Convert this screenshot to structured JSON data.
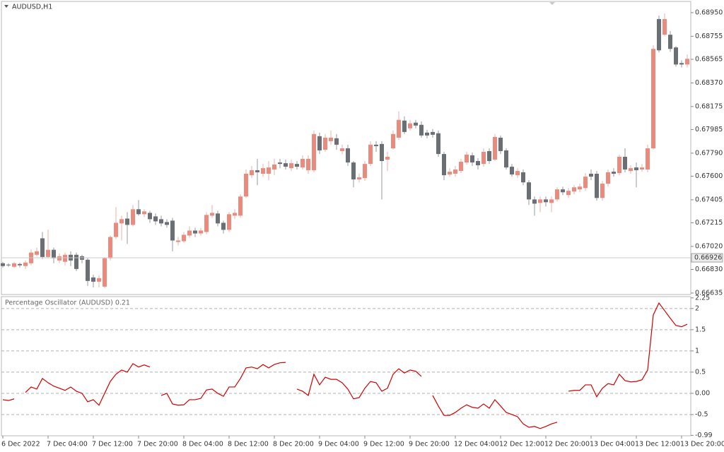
{
  "chart_data": [
    {
      "type": "candlestick",
      "title": "AUDUSD,H1",
      "categories": [
        "6 Dec 2022",
        null,
        null,
        null,
        null,
        null,
        null,
        null,
        "7 Dec 04:00",
        null,
        null,
        null,
        null,
        null,
        null,
        null,
        "7 Dec 12:00",
        null,
        null,
        null,
        null,
        null,
        null,
        null,
        "7 Dec 20:00",
        null,
        null,
        null,
        null,
        null,
        null,
        null,
        "8 Dec 04:00",
        null,
        null,
        null,
        null,
        null,
        null,
        null,
        "8 Dec 12:00",
        null,
        null,
        null,
        null,
        null,
        null,
        null,
        "8 Dec 20:00",
        null,
        null,
        null,
        null,
        null,
        null,
        null,
        "9 Dec 04:00",
        null,
        null,
        null,
        null,
        null,
        null,
        null,
        "9 Dec 12:00",
        null,
        null,
        null,
        null,
        null,
        null,
        null,
        "9 Dec 20:00",
        null,
        null,
        null,
        null,
        null,
        null,
        null,
        "12 Dec 04:00",
        null,
        null,
        null,
        null,
        null,
        null,
        null,
        "12 Dec 12:00",
        null,
        null,
        null,
        null,
        null,
        null,
        null,
        "12 Dec 20:00",
        null,
        null,
        null,
        null,
        null,
        null,
        null,
        "13 Dec 04:00",
        null,
        null,
        null,
        null,
        null,
        null,
        null,
        "13 Dec 12:00",
        null,
        null,
        null,
        null,
        null,
        null,
        null,
        "13 Dec 20:00",
        null
      ],
      "ohlc": [
        [
          0.66881,
          0.66893,
          0.66846,
          0.66858
        ],
        [
          0.6687,
          0.66881,
          0.66852,
          0.66864
        ],
        [
          0.66852,
          0.66893,
          0.6684,
          0.66881
        ],
        [
          0.66875,
          0.66887,
          0.66846,
          0.66864
        ],
        [
          0.66858,
          0.66905,
          0.66834,
          0.66887
        ],
        [
          0.66881,
          0.66993,
          0.66864,
          0.66969
        ],
        [
          0.66951,
          0.6701,
          0.66939,
          0.6698
        ],
        [
          0.67087,
          0.67139,
          0.66916,
          0.66933
        ],
        [
          0.66933,
          0.67157,
          0.66922,
          0.66992
        ],
        [
          0.66992,
          0.6701,
          0.66881,
          0.66922
        ],
        [
          0.66904,
          0.66963,
          0.66881,
          0.66939
        ],
        [
          0.66893,
          0.66969,
          0.66864,
          0.66951
        ],
        [
          0.66951,
          0.6698,
          0.66858,
          0.66904
        ],
        [
          0.66951,
          0.66969,
          0.66816,
          0.66834
        ],
        [
          0.66939,
          0.66951,
          0.66881,
          0.6691
        ],
        [
          0.6691,
          0.66922,
          0.66694,
          0.66735
        ],
        [
          0.66764,
          0.66787,
          0.66682,
          0.66729
        ],
        [
          0.66729,
          0.66781,
          0.66682,
          0.66758
        ],
        [
          0.66688,
          0.66933,
          0.66676,
          0.66922
        ],
        [
          0.66922,
          0.6711,
          0.66905,
          0.67098
        ],
        [
          0.67098,
          0.67344,
          0.67081,
          0.67215
        ],
        [
          0.6721,
          0.67274,
          0.67069,
          0.67245
        ],
        [
          0.6725,
          0.67303,
          0.6704,
          0.67198
        ],
        [
          0.67198,
          0.67362,
          0.67186,
          0.67327
        ],
        [
          0.67327,
          0.67403,
          0.67274,
          0.67286
        ],
        [
          0.67286,
          0.67327,
          0.67262,
          0.67309
        ],
        [
          0.67297,
          0.67315,
          0.67215,
          0.67245
        ],
        [
          0.67268,
          0.67292,
          0.67198,
          0.67227
        ],
        [
          0.67245,
          0.67274,
          0.67186,
          0.6721
        ],
        [
          0.67221,
          0.67245,
          0.67174,
          0.67198
        ],
        [
          0.67233,
          0.67256,
          0.6698,
          0.67069
        ],
        [
          0.67057,
          0.67098,
          0.67028,
          0.67069
        ],
        [
          0.67063,
          0.67139,
          0.67051,
          0.67116
        ],
        [
          0.6711,
          0.67186,
          0.67092,
          0.67151
        ],
        [
          0.67151,
          0.67174,
          0.67098,
          0.67127
        ],
        [
          0.67127,
          0.67174,
          0.6711,
          0.67151
        ],
        [
          0.67139,
          0.67303,
          0.67121,
          0.6728
        ],
        [
          0.67274,
          0.67362,
          0.67256,
          0.67297
        ],
        [
          0.67292,
          0.67315,
          0.67186,
          0.6721
        ],
        [
          0.67215,
          0.67233,
          0.67127,
          0.67157
        ],
        [
          0.67157,
          0.67303,
          0.67139,
          0.67286
        ],
        [
          0.67274,
          0.67327,
          0.67245,
          0.67297
        ],
        [
          0.67274,
          0.6745,
          0.67256,
          0.67432
        ],
        [
          0.67432,
          0.67655,
          0.6742,
          0.6762
        ],
        [
          0.67608,
          0.67684,
          0.67584,
          0.67649
        ],
        [
          0.67649,
          0.67743,
          0.67526,
          0.67632
        ],
        [
          0.6762,
          0.67701,
          0.67596,
          0.67666
        ],
        [
          0.6762,
          0.67725,
          0.67567,
          0.67672
        ],
        [
          0.67655,
          0.67743,
          0.67608,
          0.67696
        ],
        [
          0.67713,
          0.67743,
          0.67666,
          0.67701
        ],
        [
          0.67707,
          0.67737,
          0.67655,
          0.67678
        ],
        [
          0.67666,
          0.67737,
          0.67643,
          0.67707
        ],
        [
          0.67701,
          0.67725,
          0.67655,
          0.67678
        ],
        [
          0.67672,
          0.67772,
          0.67655,
          0.67743
        ],
        [
          0.67649,
          0.67772,
          0.6762,
          0.67743
        ],
        [
          0.67649,
          0.67977,
          0.67632,
          0.67948
        ],
        [
          0.6793,
          0.6796,
          0.67783,
          0.67813
        ],
        [
          0.67818,
          0.67948,
          0.67801,
          0.67918
        ],
        [
          0.67889,
          0.67977,
          0.6786,
          0.67918
        ],
        [
          0.67913,
          0.67948,
          0.67818,
          0.6786
        ],
        [
          0.67807,
          0.6786,
          0.67783,
          0.6783
        ],
        [
          0.6783,
          0.6786,
          0.67684,
          0.67713
        ],
        [
          0.67713,
          0.67725,
          0.67508,
          0.67573
        ],
        [
          0.67573,
          0.6762,
          0.67549,
          0.6759
        ],
        [
          0.67584,
          0.67725,
          0.67561,
          0.67701
        ],
        [
          0.67701,
          0.67889,
          0.67684,
          0.6786
        ],
        [
          0.6786,
          0.67889,
          0.67801,
          0.67848
        ],
        [
          0.67866,
          0.67889,
          0.67408,
          0.67725
        ],
        [
          0.67737,
          0.67801,
          0.67643,
          0.6776
        ],
        [
          0.6783,
          0.67977,
          0.67818,
          0.67948
        ],
        [
          0.67918,
          0.68135,
          0.67901,
          0.68065
        ],
        [
          0.68059,
          0.68094,
          0.67948,
          0.67965
        ],
        [
          0.67995,
          0.68065,
          0.67977,
          0.68036
        ],
        [
          0.68042,
          0.68065,
          0.67995,
          0.68018
        ],
        [
          0.68024,
          0.68053,
          0.67918,
          0.67936
        ],
        [
          0.6796,
          0.67983,
          0.67913,
          0.67936
        ],
        [
          0.67965,
          0.67989,
          0.67918,
          0.67942
        ],
        [
          0.67954,
          0.67977,
          0.6776,
          0.67783
        ],
        [
          0.67783,
          0.67801,
          0.67567,
          0.67608
        ],
        [
          0.67614,
          0.67666,
          0.67596,
          0.67637
        ],
        [
          0.6762,
          0.67684,
          0.67596,
          0.67655
        ],
        [
          0.67643,
          0.67743,
          0.67626,
          0.67719
        ],
        [
          0.67713,
          0.67801,
          0.67696,
          0.67778
        ],
        [
          0.67772,
          0.67795,
          0.67684,
          0.67713
        ],
        [
          0.67725,
          0.67748,
          0.67655,
          0.6769
        ],
        [
          0.67701,
          0.6783,
          0.67678,
          0.67801
        ],
        [
          0.67807,
          0.6783,
          0.67701,
          0.67725
        ],
        [
          0.67737,
          0.67948,
          0.67725,
          0.67924
        ],
        [
          0.67918,
          0.67936,
          0.67783,
          0.67807
        ],
        [
          0.67813,
          0.6783,
          0.67655,
          0.67672
        ],
        [
          0.67678,
          0.67701,
          0.67596,
          0.67614
        ],
        [
          0.67608,
          0.67666,
          0.67584,
          0.67643
        ],
        [
          0.67632,
          0.67655,
          0.67526,
          0.67549
        ],
        [
          0.67549,
          0.67567,
          0.67362,
          0.67408
        ],
        [
          0.67408,
          0.67432,
          0.67274,
          0.67373
        ],
        [
          0.67379,
          0.67432,
          0.67303,
          0.67408
        ],
        [
          0.67408,
          0.67432,
          0.6735,
          0.67385
        ],
        [
          0.67379,
          0.67432,
          0.67303,
          0.67408
        ],
        [
          0.67408,
          0.67508,
          0.67391,
          0.67491
        ],
        [
          0.67491,
          0.67514,
          0.67444,
          0.67467
        ],
        [
          0.67444,
          0.67502,
          0.6742,
          0.67479
        ],
        [
          0.67473,
          0.67526,
          0.6745,
          0.67508
        ],
        [
          0.67491,
          0.67538,
          0.67467,
          0.67514
        ],
        [
          0.67502,
          0.67626,
          0.67479,
          0.67596
        ],
        [
          0.6762,
          0.67655,
          0.67567,
          0.67596
        ],
        [
          0.6762,
          0.67643,
          0.67397,
          0.6742
        ],
        [
          0.6742,
          0.67561,
          0.67397,
          0.67538
        ],
        [
          0.67538,
          0.67655,
          0.67514,
          0.67632
        ],
        [
          0.67637,
          0.67666,
          0.67596,
          0.6762
        ],
        [
          0.67626,
          0.67778,
          0.67608,
          0.6776
        ],
        [
          0.6776,
          0.6783,
          0.67632,
          0.67655
        ],
        [
          0.67643,
          0.6769,
          0.6762,
          0.67666
        ],
        [
          0.67672,
          0.67713,
          0.67508,
          0.67649
        ],
        [
          0.67655,
          0.67701,
          0.67637,
          0.67672
        ],
        [
          0.67655,
          0.6786,
          0.67632,
          0.6783
        ],
        [
          0.6783,
          0.6868,
          0.67818,
          0.68651
        ],
        [
          0.68897,
          0.68926,
          0.68622,
          0.68639
        ],
        [
          0.68768,
          0.68944,
          0.68756,
          0.68897
        ],
        [
          0.68768,
          0.68797,
          0.68627,
          0.68651
        ],
        [
          0.68663,
          0.68674,
          0.68504,
          0.68522
        ],
        [
          0.68534,
          0.68557,
          0.68498,
          0.68522
        ],
        [
          0.68522,
          0.68604,
          0.68498,
          0.68569
        ]
      ],
      "up_color": "#ec8a7e",
      "down_color": "#6a6e75",
      "ylim": [
        0.66623,
        0.69043
      ],
      "yticks": [
        {
          "value": 0.6895,
          "label": "0.68950"
        },
        0.68755,
        0.68565,
        {
          "value": 0.6837,
          "label": "0.68370"
        },
        0.68175,
        0.67985,
        {
          "value": 0.6779,
          "label": "0.67790"
        },
        {
          "value": 0.676,
          "label": "0.67600"
        },
        0.67405,
        0.67215,
        {
          "value": 0.6702,
          "label": "0.67020"
        },
        {
          "value": 0.6683,
          "label": "0.66830"
        },
        0.66635
      ],
      "last_price": 0.66926
    },
    {
      "type": "line",
      "title": "Percentage Oscillator (AUDUSD) 0.21",
      "values": [
        -0.15,
        -0.17,
        -0.13,
        null,
        0.02,
        0.15,
        0.1,
        0.35,
        0.25,
        0.17,
        0.12,
        0.07,
        0.15,
        0.05,
        0,
        -0.2,
        -0.15,
        -0.28,
        0,
        0.28,
        0.45,
        0.55,
        0.5,
        0.7,
        0.62,
        0.67,
        0.62,
        null,
        -0.05,
        0,
        -0.25,
        -0.28,
        -0.27,
        -0.15,
        -0.15,
        -0.12,
        0.08,
        0.1,
        0,
        -0.07,
        0.15,
        0.15,
        0.35,
        0.6,
        0.62,
        0.58,
        0.68,
        0.6,
        0.68,
        0.72,
        0.73,
        null,
        0.1,
        0.05,
        -0.05,
        0.45,
        0.2,
        0.38,
        0.33,
        0.33,
        0.25,
        0.1,
        -0.13,
        -0.1,
        0.12,
        0.28,
        0.25,
        0.05,
        0.12,
        0.45,
        0.58,
        0.48,
        0.55,
        0.52,
        0.4,
        null,
        -0.05,
        -0.3,
        -0.52,
        -0.52,
        -0.45,
        -0.35,
        -0.27,
        -0.33,
        -0.35,
        -0.25,
        -0.35,
        -0.15,
        -0.3,
        -0.45,
        -0.5,
        -0.55,
        -0.72,
        -0.8,
        -0.78,
        -0.83,
        -0.78,
        -0.72,
        -0.68,
        null,
        0.05,
        0.07,
        0.07,
        0.2,
        0.2,
        -0.08,
        0.12,
        0.23,
        0.2,
        0.45,
        0.3,
        0.27,
        0.28,
        0.32,
        0.55,
        1.85,
        2.13,
        1.95,
        1.77,
        1.6,
        1.57,
        1.63
      ],
      "color": "#d00000",
      "ylim": [
        -1.0,
        2.28
      ],
      "yticks": [
        2.25,
        2,
        1.5,
        1,
        0.5,
        {
          "value": 0,
          "label": "0.00"
        },
        -0.5,
        -0.99
      ],
      "levels": [
        2,
        1.5,
        1,
        0.5,
        0,
        -0.5
      ]
    }
  ]
}
